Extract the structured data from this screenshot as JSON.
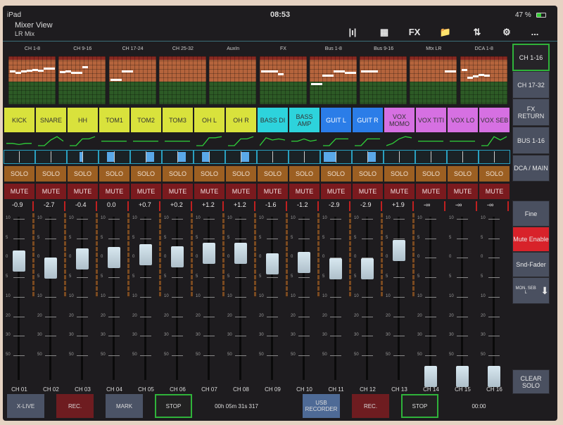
{
  "status": {
    "device": "iPad",
    "time": "08:53",
    "battery": "47 %"
  },
  "header": {
    "title": "Mixer View",
    "subtitle": "LR Mix"
  },
  "toolbar": [
    {
      "icon": "meters-icon",
      "glyph": "|ı|"
    },
    {
      "icon": "grid-icon",
      "glyph": "▦"
    },
    {
      "icon": "fx-icon",
      "glyph": "FX"
    },
    {
      "icon": "folder-icon",
      "glyph": "📁"
    },
    {
      "icon": "transfer-icon",
      "glyph": "⇅"
    },
    {
      "icon": "gear-icon",
      "glyph": "⚙"
    },
    {
      "icon": "more-icon",
      "glyph": "..."
    }
  ],
  "overview": [
    {
      "label": "CH 1-8",
      "levels": [
        0.71,
        0.67,
        0.71,
        0.72,
        0.73,
        0.72,
        0.77,
        0.77
      ]
    },
    {
      "label": "CH 9-16",
      "levels": [
        0.69,
        0.7,
        0.67,
        0.67,
        0.79,
        null,
        null,
        null
      ]
    },
    {
      "label": "CH 17-24",
      "levels": [
        0.53,
        0.53,
        0.71,
        0.71,
        null,
        null,
        null,
        null
      ]
    },
    {
      "label": "CH 25-32",
      "levels": []
    },
    {
      "label": "AuxIn",
      "levels": []
    },
    {
      "label": "FX",
      "levels": [
        0.71,
        0.71,
        0.71,
        0.65
      ]
    },
    {
      "label": "Bus 1-8",
      "levels": [
        0.44,
        0.44,
        0.62,
        0.62,
        0.71,
        0.71,
        0.67,
        0.67
      ]
    },
    {
      "label": "Bus 9-16",
      "levels": [
        0.71,
        0.71,
        0.71
      ]
    },
    {
      "label": "Mtx LR",
      "levels": [
        null,
        null,
        null,
        null,
        null,
        null,
        0.71,
        0.71
      ]
    },
    {
      "label": "DCA 1-8",
      "levels": [
        0.74,
        0.58,
        0.61,
        0.63,
        0.62
      ]
    }
  ],
  "right_nav": [
    "CH 1-16",
    "CH 17-32",
    "FX RETURN",
    "BUS 1-16",
    "DCA / MAIN"
  ],
  "right_tools": {
    "fine": "Fine",
    "mute_enable": "Mute Enable",
    "snd_fader": "Snd-Fader",
    "mon": "MON. SEB L",
    "clear_solo": "CLEAR SOLO"
  },
  "colors": {
    "drums": "#d9e23c",
    "bass": "#2dd3dc",
    "guitar": "#2b7de8",
    "vox": "#d670e2",
    "mute_enable": "#d8222a",
    "active_border": "#2fb33a"
  },
  "solo_label": "SOLO",
  "mute_label": "MUTE",
  "scale": [
    "10",
    "5",
    "0",
    "5",
    "10",
    "20",
    "30",
    "50"
  ],
  "channels": [
    {
      "id": "CH 01",
      "name": "KICK",
      "group": "drums",
      "value": "-0.9",
      "db": -0.9,
      "pan": 0,
      "eq": [
        2,
        2,
        1,
        2,
        2
      ]
    },
    {
      "id": "CH 02",
      "name": "SNARE",
      "group": "drums",
      "value": "-2.7",
      "db": -2.7,
      "pan": 0,
      "eq": [
        0,
        0,
        5,
        8,
        4
      ]
    },
    {
      "id": "CH 03",
      "name": "HH",
      "group": "drums",
      "value": "-0.4",
      "db": -0.4,
      "pan": -0.2,
      "eq": [
        0,
        0,
        6,
        6,
        8
      ]
    },
    {
      "id": "CH 04",
      "name": "TOM1",
      "group": "drums",
      "value": "0.0",
      "db": 0,
      "pan": -0.5,
      "eq": [
        4,
        4,
        4,
        4,
        4
      ]
    },
    {
      "id": "CH 05",
      "name": "TOM2",
      "group": "drums",
      "value": "+0.7",
      "db": 0.7,
      "pan": 0.5,
      "eq": [
        4,
        4,
        4,
        4,
        4
      ]
    },
    {
      "id": "CH 06",
      "name": "TOM3",
      "group": "drums",
      "value": "+0.2",
      "db": 0.2,
      "pan": 0.5,
      "eq": [
        4,
        4,
        4,
        4,
        4
      ]
    },
    {
      "id": "CH 07",
      "name": "OH L",
      "group": "drums",
      "value": "+1.2",
      "db": 1.2,
      "pan": -0.5,
      "eq": [
        0,
        0,
        7,
        7,
        8
      ]
    },
    {
      "id": "CH 08",
      "name": "OH R",
      "group": "drums",
      "value": "+1.2",
      "db": 1.2,
      "pan": 0.5,
      "eq": [
        0,
        0,
        6,
        6,
        8
      ]
    },
    {
      "id": "CH 09",
      "name": "BASS DI",
      "group": "bass",
      "value": "-1.6",
      "db": -1.6,
      "pan": 0,
      "eq": [
        0,
        7,
        5,
        6,
        5
      ]
    },
    {
      "id": "CH 10",
      "name": "BASS AMP",
      "group": "bass",
      "value": "-1.2",
      "db": -1.2,
      "pan": 0,
      "eq": [
        4,
        4,
        6,
        4,
        5
      ]
    },
    {
      "id": "CH 11",
      "name": "GUIT L",
      "group": "guitar",
      "value": "-2.9",
      "db": -2.9,
      "pan": -0.8,
      "eq": [
        0,
        0,
        6,
        6,
        6
      ]
    },
    {
      "id": "CH 12",
      "name": "GUIT R",
      "group": "guitar",
      "value": "-2.9",
      "db": -2.9,
      "pan": 0.5,
      "eq": [
        0,
        0,
        6,
        6,
        6
      ]
    },
    {
      "id": "CH 13",
      "name": "VOX MOMO",
      "group": "vox",
      "value": "+1.9",
      "db": 1.9,
      "pan": 0,
      "eq": [
        0,
        2,
        6,
        8,
        7
      ]
    },
    {
      "id": "CH 14",
      "name": "VOX TITI",
      "group": "vox",
      "value": "-∞",
      "db": null,
      "pan": 0,
      "eq": [
        4,
        4,
        4,
        4,
        4
      ]
    },
    {
      "id": "CH 15",
      "name": "VOX LO",
      "group": "vox",
      "value": "-∞",
      "db": null,
      "pan": 0,
      "eq": [
        4,
        4,
        4,
        4,
        4
      ]
    },
    {
      "id": "CH 16",
      "name": "VOX SEB",
      "group": "vox",
      "value": "-∞",
      "db": null,
      "pan": 0,
      "eq": [
        0,
        0,
        8,
        5,
        8
      ]
    }
  ],
  "bottom": {
    "xlive": "X-LIVE",
    "rec1": "REC.",
    "mark": "MARK",
    "stop1": "STOP",
    "time1": "00h 05m 31s 317",
    "usb": "USB RECORDER",
    "rec2": "REC.",
    "stop2": "STOP",
    "time2": "00:00"
  }
}
